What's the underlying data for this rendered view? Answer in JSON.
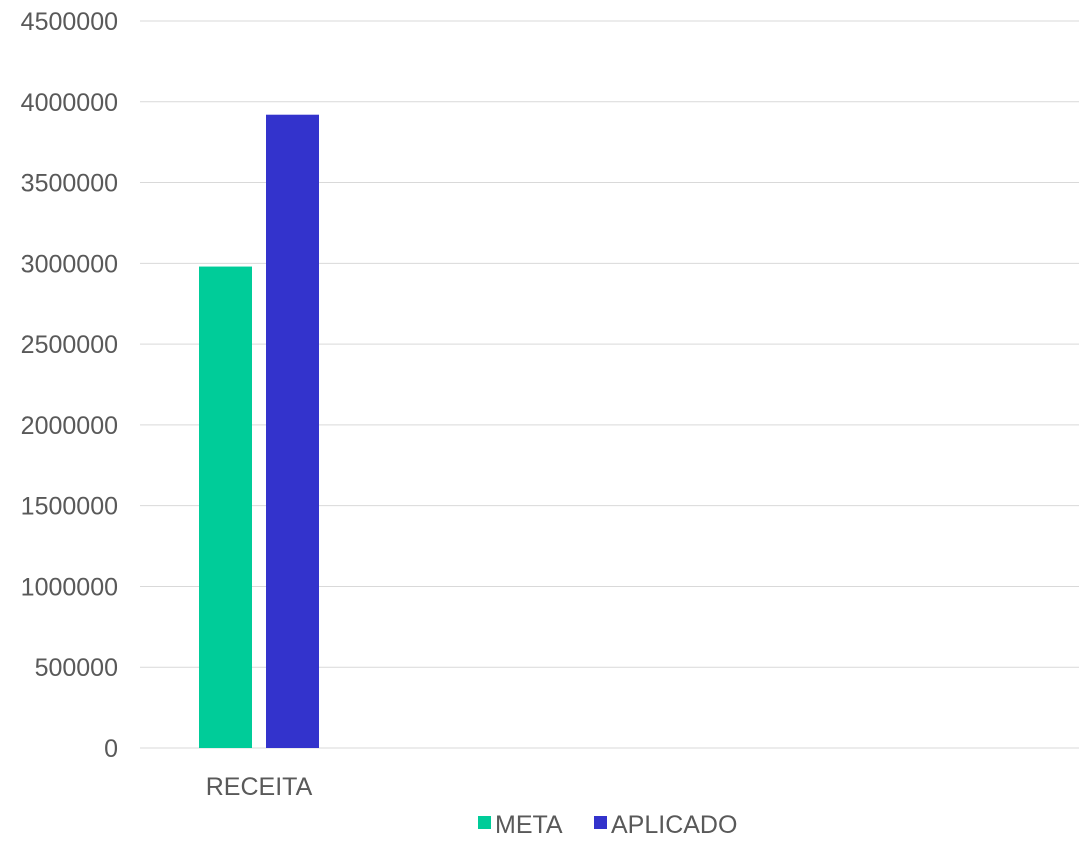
{
  "chart_data": {
    "type": "bar",
    "title": "",
    "xlabel": "",
    "ylabel": "",
    "categories": [
      "RECEITA"
    ],
    "series": [
      {
        "name": "META",
        "color": "#00cc99",
        "values": [
          2980000
        ]
      },
      {
        "name": "APLICADO",
        "color": "#3333cc",
        "values": [
          3920000
        ]
      }
    ],
    "ylim": [
      0,
      4500000
    ],
    "yticks": [
      "0",
      "500000",
      "1000000",
      "1500000",
      "2000000",
      "2500000",
      "3000000",
      "3500000",
      "4000000",
      "4500000"
    ],
    "grid": true,
    "legend_position": "bottom"
  }
}
